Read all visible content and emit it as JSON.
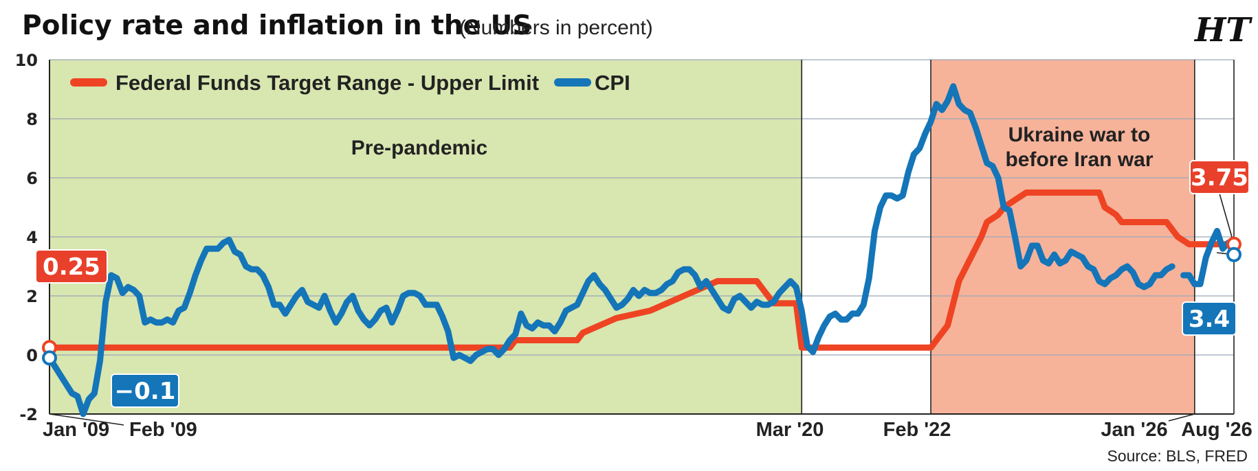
{
  "header": {
    "title": "Policy rate and inflation in the US",
    "subtitle": "(Numbers in percent)",
    "logo": "HT"
  },
  "source": "Source: BLS, FRED",
  "colors": {
    "fed_line": "#ee4423",
    "cpi_line": "#1475b8",
    "pre_pandemic_band": "#d8e6b0",
    "ukraine_band": "#f6b39a",
    "grid": "#9aa7b6"
  },
  "chart_data": {
    "type": "line",
    "title": "Policy rate and inflation in the US",
    "subtitle": "(Numbers in percent)",
    "ylim": [
      -2,
      10
    ],
    "yticks": [
      -2,
      0,
      2,
      4,
      6,
      8,
      10
    ],
    "x_range": [
      "2009-01",
      "2026-08"
    ],
    "x_tick_labels": [
      {
        "date": "2009-01",
        "label": "Jan '09"
      },
      {
        "date": "2009-02",
        "label": "Feb '09"
      },
      {
        "date": "2020-03",
        "label": "Mar '20"
      },
      {
        "date": "2022-02",
        "label": "Feb '22"
      },
      {
        "date": "2026-01",
        "label": "Jan '26"
      },
      {
        "date": "2026-08",
        "label": "Aug '26"
      }
    ],
    "legend": {
      "position": "top-left",
      "entries": [
        "Federal Funds Target Range - Upper Limit",
        "CPI"
      ]
    },
    "grid": true,
    "regions": [
      {
        "label": "Pre-pandemic",
        "start": "2009-01",
        "end": "2020-03",
        "color": "#d8e6b0"
      },
      {
        "label_lines": [
          "Ukraine war to",
          "before Iran war"
        ],
        "start": "2022-02",
        "end": "2026-01",
        "color": "#f6b39a"
      }
    ],
    "series": [
      {
        "name": "Federal Funds Target Range - Upper Limit",
        "color": "#ee4423",
        "points": [
          [
            "2009-01",
            0.25
          ],
          [
            "2015-11",
            0.25
          ],
          [
            "2015-12",
            0.5
          ],
          [
            "2016-11",
            0.5
          ],
          [
            "2016-12",
            0.75
          ],
          [
            "2017-03",
            1.0
          ],
          [
            "2017-06",
            1.25
          ],
          [
            "2017-12",
            1.5
          ],
          [
            "2018-03",
            1.75
          ],
          [
            "2018-06",
            2.0
          ],
          [
            "2018-09",
            2.25
          ],
          [
            "2018-12",
            2.5
          ],
          [
            "2019-07",
            2.5
          ],
          [
            "2019-08",
            2.25
          ],
          [
            "2019-09",
            2.0
          ],
          [
            "2019-10",
            1.75
          ],
          [
            "2020-02",
            1.75
          ],
          [
            "2020-03",
            0.25
          ],
          [
            "2022-02",
            0.25
          ],
          [
            "2022-03",
            0.5
          ],
          [
            "2022-05",
            1.0
          ],
          [
            "2022-06",
            1.75
          ],
          [
            "2022-07",
            2.5
          ],
          [
            "2022-09",
            3.25
          ],
          [
            "2022-11",
            4.0
          ],
          [
            "2022-12",
            4.5
          ],
          [
            "2023-02",
            4.75
          ],
          [
            "2023-03",
            5.0
          ],
          [
            "2023-05",
            5.25
          ],
          [
            "2023-07",
            5.5
          ],
          [
            "2024-08",
            5.5
          ],
          [
            "2024-09",
            5.0
          ],
          [
            "2024-11",
            4.75
          ],
          [
            "2024-12",
            4.5
          ],
          [
            "2025-08",
            4.5
          ],
          [
            "2025-09",
            4.25
          ],
          [
            "2025-10",
            4.0
          ],
          [
            "2025-12",
            3.75
          ],
          [
            "2026-08",
            3.75
          ]
        ]
      },
      {
        "name": "CPI",
        "color": "#1475b8",
        "points": [
          [
            "2009-01",
            -0.1
          ],
          [
            "2009-02",
            -0.4
          ],
          [
            "2009-03",
            -0.7
          ],
          [
            "2009-04",
            -1.0
          ],
          [
            "2009-05",
            -1.3
          ],
          [
            "2009-06",
            -1.4
          ],
          [
            "2009-07",
            -2.0
          ],
          [
            "2009-08",
            -1.5
          ],
          [
            "2009-09",
            -1.3
          ],
          [
            "2009-10",
            -0.2
          ],
          [
            "2009-11",
            1.8
          ],
          [
            "2009-12",
            2.7
          ],
          [
            "2010-01",
            2.6
          ],
          [
            "2010-02",
            2.1
          ],
          [
            "2010-03",
            2.3
          ],
          [
            "2010-04",
            2.2
          ],
          [
            "2010-05",
            2.0
          ],
          [
            "2010-06",
            1.1
          ],
          [
            "2010-07",
            1.2
          ],
          [
            "2010-08",
            1.1
          ],
          [
            "2010-09",
            1.1
          ],
          [
            "2010-10",
            1.2
          ],
          [
            "2010-11",
            1.1
          ],
          [
            "2010-12",
            1.5
          ],
          [
            "2011-01",
            1.6
          ],
          [
            "2011-02",
            2.1
          ],
          [
            "2011-03",
            2.7
          ],
          [
            "2011-04",
            3.2
          ],
          [
            "2011-05",
            3.6
          ],
          [
            "2011-06",
            3.6
          ],
          [
            "2011-07",
            3.6
          ],
          [
            "2011-08",
            3.8
          ],
          [
            "2011-09",
            3.9
          ],
          [
            "2011-10",
            3.5
          ],
          [
            "2011-11",
            3.4
          ],
          [
            "2011-12",
            3.0
          ],
          [
            "2012-01",
            2.9
          ],
          [
            "2012-02",
            2.9
          ],
          [
            "2012-03",
            2.7
          ],
          [
            "2012-04",
            2.3
          ],
          [
            "2012-05",
            1.7
          ],
          [
            "2012-06",
            1.7
          ],
          [
            "2012-07",
            1.4
          ],
          [
            "2012-08",
            1.7
          ],
          [
            "2012-09",
            2.0
          ],
          [
            "2012-10",
            2.2
          ],
          [
            "2012-11",
            1.8
          ],
          [
            "2012-12",
            1.7
          ],
          [
            "2013-01",
            1.6
          ],
          [
            "2013-02",
            2.0
          ],
          [
            "2013-03",
            1.5
          ],
          [
            "2013-04",
            1.1
          ],
          [
            "2013-05",
            1.4
          ],
          [
            "2013-06",
            1.8
          ],
          [
            "2013-07",
            2.0
          ],
          [
            "2013-08",
            1.5
          ],
          [
            "2013-09",
            1.2
          ],
          [
            "2013-10",
            1.0
          ],
          [
            "2013-11",
            1.2
          ],
          [
            "2013-12",
            1.5
          ],
          [
            "2014-01",
            1.6
          ],
          [
            "2014-02",
            1.1
          ],
          [
            "2014-03",
            1.5
          ],
          [
            "2014-04",
            2.0
          ],
          [
            "2014-05",
            2.1
          ],
          [
            "2014-06",
            2.1
          ],
          [
            "2014-07",
            2.0
          ],
          [
            "2014-08",
            1.7
          ],
          [
            "2014-09",
            1.7
          ],
          [
            "2014-10",
            1.7
          ],
          [
            "2014-11",
            1.3
          ],
          [
            "2014-12",
            0.8
          ],
          [
            "2015-01",
            -0.1
          ],
          [
            "2015-02",
            0.0
          ],
          [
            "2015-03",
            -0.1
          ],
          [
            "2015-04",
            -0.2
          ],
          [
            "2015-05",
            0.0
          ],
          [
            "2015-06",
            0.1
          ],
          [
            "2015-07",
            0.2
          ],
          [
            "2015-08",
            0.2
          ],
          [
            "2015-09",
            0.0
          ],
          [
            "2015-10",
            0.2
          ],
          [
            "2015-11",
            0.5
          ],
          [
            "2015-12",
            0.7
          ],
          [
            "2016-01",
            1.4
          ],
          [
            "2016-02",
            1.0
          ],
          [
            "2016-03",
            0.9
          ],
          [
            "2016-04",
            1.1
          ],
          [
            "2016-05",
            1.0
          ],
          [
            "2016-06",
            1.0
          ],
          [
            "2016-07",
            0.8
          ],
          [
            "2016-08",
            1.1
          ],
          [
            "2016-09",
            1.5
          ],
          [
            "2016-10",
            1.6
          ],
          [
            "2016-11",
            1.7
          ],
          [
            "2016-12",
            2.1
          ],
          [
            "2017-01",
            2.5
          ],
          [
            "2017-02",
            2.7
          ],
          [
            "2017-03",
            2.4
          ],
          [
            "2017-04",
            2.2
          ],
          [
            "2017-05",
            1.9
          ],
          [
            "2017-06",
            1.6
          ],
          [
            "2017-07",
            1.7
          ],
          [
            "2017-08",
            1.9
          ],
          [
            "2017-09",
            2.2
          ],
          [
            "2017-10",
            2.0
          ],
          [
            "2017-11",
            2.2
          ],
          [
            "2017-12",
            2.1
          ],
          [
            "2018-01",
            2.1
          ],
          [
            "2018-02",
            2.2
          ],
          [
            "2018-03",
            2.4
          ],
          [
            "2018-04",
            2.5
          ],
          [
            "2018-05",
            2.8
          ],
          [
            "2018-06",
            2.9
          ],
          [
            "2018-07",
            2.9
          ],
          [
            "2018-08",
            2.7
          ],
          [
            "2018-09",
            2.3
          ],
          [
            "2018-10",
            2.5
          ],
          [
            "2018-11",
            2.2
          ],
          [
            "2018-12",
            1.9
          ],
          [
            "2019-01",
            1.6
          ],
          [
            "2019-02",
            1.5
          ],
          [
            "2019-03",
            1.9
          ],
          [
            "2019-04",
            2.0
          ],
          [
            "2019-05",
            1.8
          ],
          [
            "2019-06",
            1.6
          ],
          [
            "2019-07",
            1.8
          ],
          [
            "2019-08",
            1.7
          ],
          [
            "2019-09",
            1.7
          ],
          [
            "2019-10",
            1.8
          ],
          [
            "2019-11",
            2.1
          ],
          [
            "2019-12",
            2.3
          ],
          [
            "2020-01",
            2.5
          ],
          [
            "2020-02",
            2.3
          ],
          [
            "2020-03",
            1.5
          ],
          [
            "2020-04",
            0.3
          ],
          [
            "2020-05",
            0.1
          ],
          [
            "2020-06",
            0.6
          ],
          [
            "2020-07",
            1.0
          ],
          [
            "2020-08",
            1.3
          ],
          [
            "2020-09",
            1.4
          ],
          [
            "2020-10",
            1.2
          ],
          [
            "2020-11",
            1.2
          ],
          [
            "2020-12",
            1.4
          ],
          [
            "2021-01",
            1.4
          ],
          [
            "2021-02",
            1.7
          ],
          [
            "2021-03",
            2.6
          ],
          [
            "2021-04",
            4.2
          ],
          [
            "2021-05",
            5.0
          ],
          [
            "2021-06",
            5.4
          ],
          [
            "2021-07",
            5.4
          ],
          [
            "2021-08",
            5.3
          ],
          [
            "2021-09",
            5.4
          ],
          [
            "2021-10",
            6.2
          ],
          [
            "2021-11",
            6.8
          ],
          [
            "2021-12",
            7.0
          ],
          [
            "2022-01",
            7.5
          ],
          [
            "2022-02",
            7.9
          ],
          [
            "2022-03",
            8.5
          ],
          [
            "2022-04",
            8.3
          ],
          [
            "2022-05",
            8.6
          ],
          [
            "2022-06",
            9.1
          ],
          [
            "2022-07",
            8.5
          ],
          [
            "2022-08",
            8.3
          ],
          [
            "2022-09",
            8.2
          ],
          [
            "2022-10",
            7.7
          ],
          [
            "2022-11",
            7.1
          ],
          [
            "2022-12",
            6.5
          ],
          [
            "2023-01",
            6.4
          ],
          [
            "2023-02",
            6.0
          ],
          [
            "2023-03",
            5.0
          ],
          [
            "2023-04",
            4.9
          ],
          [
            "2023-05",
            4.0
          ],
          [
            "2023-06",
            3.0
          ],
          [
            "2023-07",
            3.2
          ],
          [
            "2023-08",
            3.7
          ],
          [
            "2023-09",
            3.7
          ],
          [
            "2023-10",
            3.2
          ],
          [
            "2023-11",
            3.1
          ],
          [
            "2023-12",
            3.4
          ],
          [
            "2024-01",
            3.1
          ],
          [
            "2024-02",
            3.2
          ],
          [
            "2024-03",
            3.5
          ],
          [
            "2024-04",
            3.4
          ],
          [
            "2024-05",
            3.3
          ],
          [
            "2024-06",
            3.0
          ],
          [
            "2024-07",
            2.9
          ],
          [
            "2024-08",
            2.5
          ],
          [
            "2024-09",
            2.4
          ],
          [
            "2024-10",
            2.6
          ],
          [
            "2024-11",
            2.7
          ],
          [
            "2024-12",
            2.9
          ],
          [
            "2025-01",
            3.0
          ],
          [
            "2025-02",
            2.8
          ],
          [
            "2025-03",
            2.4
          ],
          [
            "2025-04",
            2.3
          ],
          [
            "2025-05",
            2.4
          ],
          [
            "2025-06",
            2.7
          ],
          [
            "2025-07",
            2.7
          ],
          [
            "2025-08",
            2.9
          ],
          [
            "2025-09",
            3.0
          ],
          null,
          [
            "2025-11",
            2.7
          ],
          [
            "2025-12",
            2.7
          ],
          [
            "2026-01",
            2.4
          ],
          [
            "2026-02",
            2.4
          ],
          [
            "2026-03",
            3.3
          ],
          [
            "2026-04",
            3.8
          ],
          [
            "2026-05",
            4.2
          ],
          [
            "2026-06",
            3.6
          ],
          [
            "2026-07",
            3.8
          ],
          [
            "2026-08",
            3.4
          ]
        ]
      }
    ],
    "callouts": [
      {
        "text": "0.25",
        "series": "fed",
        "date": "2009-01",
        "value": 0.25
      },
      {
        "text": "−0.1",
        "series": "cpi",
        "date": "2009-01",
        "value": -0.1
      },
      {
        "text": "3.75",
        "series": "fed",
        "date": "2026-08",
        "value": 3.75
      },
      {
        "text": "3.4",
        "series": "cpi",
        "date": "2026-08",
        "value": 3.4
      }
    ]
  }
}
